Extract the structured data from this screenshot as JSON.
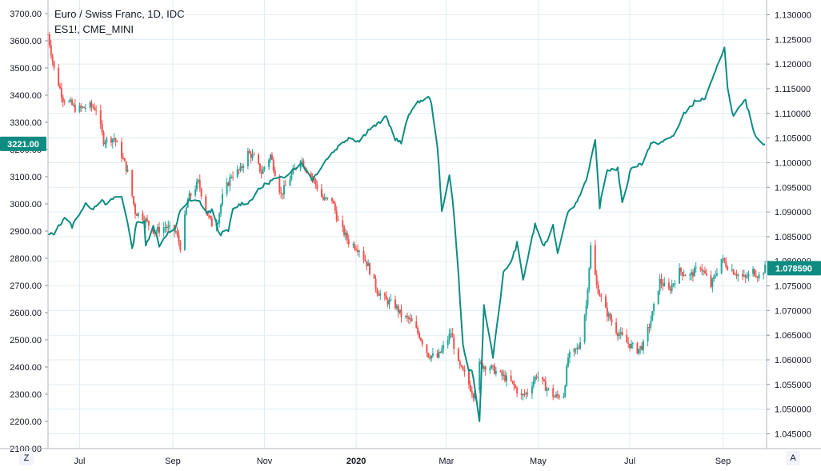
{
  "legend": {
    "main_title": "Euro / Swiss Franc, 1D, IDC",
    "overlay_title": "ES1!, CME_MINI"
  },
  "buttons": {
    "left_axis": "Z",
    "right_axis": "A"
  },
  "colors": {
    "up": "#26a69a",
    "down": "#ef5350",
    "overlay_line": "#0f8c82",
    "badge": "#0f8c82",
    "grid": "#e1ecf2",
    "axis_text": "#131722"
  },
  "chart_data": {
    "type": "candlestick_with_line_overlay",
    "x_axis": {
      "ticks": [
        "Jul",
        "Sep",
        "Nov",
        "2020",
        "Mar",
        "May",
        "Jul",
        "Sep"
      ],
      "tick_dates": [
        "2019-07-01",
        "2019-09-01",
        "2019-11-01",
        "2020-01-01",
        "2020-03-01",
        "2020-05-01",
        "2020-07-01",
        "2020-09-01"
      ],
      "range": [
        "2019-06-10",
        "2020-09-30"
      ]
    },
    "left_axis": {
      "series": "ES1!, CME_MINI",
      "ylim": [
        2100,
        3750
      ],
      "ticks": [
        "3700.00",
        "3600.00",
        "3500.00",
        "3400.00",
        "3300.00",
        "3200.00",
        "3100.00",
        "3000.00",
        "2900.00",
        "2800.00",
        "2700.00",
        "2600.00",
        "2500.00",
        "2400.00",
        "2300.00",
        "2200.00",
        "2100.00"
      ],
      "last_value": "3221.00",
      "last_numeric": 3221
    },
    "right_axis": {
      "series": "Euro / Swiss Franc, 1D, IDC",
      "ylim": [
        1.042,
        1.133
      ],
      "ticks": [
        "1.130000",
        "1.125000",
        "1.120000",
        "1.115000",
        "1.110000",
        "1.105000",
        "1.100000",
        "1.095000",
        "1.090000",
        "1.085000",
        "1.080000",
        "1.075000",
        "1.070000",
        "1.065000",
        "1.060000",
        "1.055000",
        "1.050000",
        "1.045000"
      ],
      "last_value": "1.078590",
      "last_numeric": 1.07859
    },
    "grid": true,
    "series": [
      {
        "name": "Euro / Swiss Franc, 1D, IDC",
        "kind": "candlestick",
        "axis": "right",
        "anchors": [
          [
            "2019-06-10",
            1.126
          ],
          [
            "2019-06-14",
            1.119
          ],
          [
            "2019-06-20",
            1.113
          ],
          [
            "2019-06-25",
            1.112
          ],
          [
            "2019-06-28",
            1.111
          ],
          [
            "2019-07-02",
            1.111
          ],
          [
            "2019-07-08",
            1.1115
          ],
          [
            "2019-07-12",
            1.111
          ],
          [
            "2019-07-17",
            1.1045
          ],
          [
            "2019-07-24",
            1.105
          ],
          [
            "2019-07-29",
            1.1015
          ],
          [
            "2019-08-02",
            1.098
          ],
          [
            "2019-08-07",
            1.09
          ],
          [
            "2019-08-12",
            1.089
          ],
          [
            "2019-08-20",
            1.086
          ],
          [
            "2019-08-27",
            1.087
          ],
          [
            "2019-09-03",
            1.086
          ],
          [
            "2019-09-06",
            1.083
          ],
          [
            "2019-09-11",
            1.0925
          ],
          [
            "2019-09-18",
            1.096
          ],
          [
            "2019-09-24",
            1.0895
          ],
          [
            "2019-09-27",
            1.0875
          ],
          [
            "2019-10-01",
            1.0885
          ],
          [
            "2019-10-04",
            1.093
          ],
          [
            "2019-10-10",
            1.0975
          ],
          [
            "2019-10-16",
            1.0985
          ],
          [
            "2019-10-21",
            1.102
          ],
          [
            "2019-10-25",
            1.101
          ],
          [
            "2019-10-30",
            1.098
          ],
          [
            "2019-11-05",
            1.1015
          ],
          [
            "2019-11-12",
            1.0935
          ],
          [
            "2019-11-19",
            1.0975
          ],
          [
            "2019-11-25",
            1.101
          ],
          [
            "2019-11-29",
            1.0985
          ],
          [
            "2019-12-03",
            1.097
          ],
          [
            "2019-12-10",
            1.0925
          ],
          [
            "2019-12-16",
            1.0925
          ],
          [
            "2019-12-20",
            1.088
          ],
          [
            "2019-12-27",
            1.084
          ],
          [
            "2020-01-03",
            1.0825
          ],
          [
            "2020-01-09",
            1.079
          ],
          [
            "2020-01-15",
            1.074
          ],
          [
            "2020-01-21",
            1.072
          ],
          [
            "2020-01-27",
            1.071
          ],
          [
            "2020-01-31",
            1.069
          ],
          [
            "2020-02-06",
            1.068
          ],
          [
            "2020-02-12",
            1.065
          ],
          [
            "2020-02-18",
            1.061
          ],
          [
            "2020-02-24",
            1.0605
          ],
          [
            "2020-02-28",
            1.0625
          ],
          [
            "2020-03-04",
            1.0655
          ],
          [
            "2020-03-09",
            1.059
          ],
          [
            "2020-03-13",
            1.057
          ],
          [
            "2020-03-19",
            1.053
          ],
          [
            "2020-03-23",
            1.059
          ],
          [
            "2020-03-30",
            1.0585
          ],
          [
            "2020-04-06",
            1.057
          ],
          [
            "2020-04-13",
            1.0555
          ],
          [
            "2020-04-20",
            1.0525
          ],
          [
            "2020-04-24",
            1.0535
          ],
          [
            "2020-04-30",
            1.057
          ],
          [
            "2020-05-06",
            1.0545
          ],
          [
            "2020-05-12",
            1.0525
          ],
          [
            "2020-05-18",
            1.053
          ],
          [
            "2020-05-21",
            1.0605
          ],
          [
            "2020-05-28",
            1.0625
          ],
          [
            "2020-06-02",
            1.071
          ],
          [
            "2020-06-05",
            1.083
          ],
          [
            "2020-06-09",
            1.075
          ],
          [
            "2020-06-15",
            1.07
          ],
          [
            "2020-06-22",
            1.066
          ],
          [
            "2020-06-29",
            1.0635
          ],
          [
            "2020-07-06",
            1.062
          ],
          [
            "2020-07-10",
            1.063
          ],
          [
            "2020-07-15",
            1.068
          ],
          [
            "2020-07-21",
            1.076
          ],
          [
            "2020-07-27",
            1.074
          ],
          [
            "2020-08-03",
            1.078
          ],
          [
            "2020-08-10",
            1.077
          ],
          [
            "2020-08-17",
            1.079
          ],
          [
            "2020-08-24",
            1.075
          ],
          [
            "2020-08-31",
            1.0805
          ],
          [
            "2020-09-04",
            1.079
          ],
          [
            "2020-09-10",
            1.0775
          ],
          [
            "2020-09-16",
            1.0765
          ],
          [
            "2020-09-21",
            1.078
          ],
          [
            "2020-09-25",
            1.077
          ],
          [
            "2020-09-29",
            1.0786
          ]
        ]
      },
      {
        "name": "ES1!, CME_MINI",
        "kind": "line",
        "axis": "left",
        "anchors": [
          [
            "2019-06-10",
            2885
          ],
          [
            "2019-06-14",
            2892
          ],
          [
            "2019-06-18",
            2925
          ],
          [
            "2019-06-21",
            2952
          ],
          [
            "2019-06-26",
            2917
          ],
          [
            "2019-07-01",
            2968
          ],
          [
            "2019-07-05",
            2997
          ],
          [
            "2019-07-10",
            2985
          ],
          [
            "2019-07-15",
            3014
          ],
          [
            "2019-07-19",
            2995
          ],
          [
            "2019-07-24",
            3024
          ],
          [
            "2019-07-29",
            3026
          ],
          [
            "2019-08-01",
            2958
          ],
          [
            "2019-08-05",
            2830
          ],
          [
            "2019-08-08",
            2938
          ],
          [
            "2019-08-13",
            2930
          ],
          [
            "2019-08-14",
            2845
          ],
          [
            "2019-08-19",
            2923
          ],
          [
            "2019-08-23",
            2848
          ],
          [
            "2019-08-28",
            2890
          ],
          [
            "2019-09-03",
            2910
          ],
          [
            "2019-09-06",
            2978
          ],
          [
            "2019-09-12",
            3012
          ],
          [
            "2019-09-19",
            3008
          ],
          [
            "2019-09-24",
            2965
          ],
          [
            "2019-09-27",
            2978
          ],
          [
            "2019-10-02",
            2889
          ],
          [
            "2019-10-08",
            2900
          ],
          [
            "2019-10-11",
            2980
          ],
          [
            "2019-10-16",
            3000
          ],
          [
            "2019-10-22",
            3008
          ],
          [
            "2019-10-28",
            3050
          ],
          [
            "2019-11-01",
            3070
          ],
          [
            "2019-11-07",
            3090
          ],
          [
            "2019-11-13",
            3095
          ],
          [
            "2019-11-19",
            3125
          ],
          [
            "2019-11-26",
            3148
          ],
          [
            "2019-12-03",
            3090
          ],
          [
            "2019-12-09",
            3140
          ],
          [
            "2019-12-13",
            3170
          ],
          [
            "2019-12-19",
            3205
          ],
          [
            "2019-12-27",
            3245
          ],
          [
            "2020-01-03",
            3230
          ],
          [
            "2020-01-09",
            3272
          ],
          [
            "2020-01-15",
            3292
          ],
          [
            "2020-01-21",
            3320
          ],
          [
            "2020-01-27",
            3240
          ],
          [
            "2020-01-31",
            3223
          ],
          [
            "2020-02-05",
            3332
          ],
          [
            "2020-02-12",
            3378
          ],
          [
            "2020-02-19",
            3392
          ],
          [
            "2020-02-21",
            3335
          ],
          [
            "2020-02-24",
            3215
          ],
          [
            "2020-02-27",
            2970
          ],
          [
            "2020-03-03",
            3110
          ],
          [
            "2020-03-06",
            2970
          ],
          [
            "2020-03-09",
            2740
          ],
          [
            "2020-03-12",
            2480
          ],
          [
            "2020-03-16",
            2385
          ],
          [
            "2020-03-18",
            2390
          ],
          [
            "2020-03-23",
            2195
          ],
          [
            "2020-03-26",
            2623
          ],
          [
            "2020-04-01",
            2440
          ],
          [
            "2020-04-08",
            2745
          ],
          [
            "2020-04-14",
            2800
          ],
          [
            "2020-04-17",
            2855
          ],
          [
            "2020-04-21",
            2720
          ],
          [
            "2020-04-29",
            2925
          ],
          [
            "2020-05-05",
            2840
          ],
          [
            "2020-05-11",
            2920
          ],
          [
            "2020-05-14",
            2820
          ],
          [
            "2020-05-20",
            2960
          ],
          [
            "2020-05-27",
            3010
          ],
          [
            "2020-06-03",
            3105
          ],
          [
            "2020-06-08",
            3230
          ],
          [
            "2020-06-11",
            2990
          ],
          [
            "2020-06-16",
            3125
          ],
          [
            "2020-06-23",
            3130
          ],
          [
            "2020-06-26",
            3000
          ],
          [
            "2020-07-02",
            3135
          ],
          [
            "2020-07-09",
            3148
          ],
          [
            "2020-07-15",
            3220
          ],
          [
            "2020-07-23",
            3228
          ],
          [
            "2020-07-30",
            3250
          ],
          [
            "2020-08-06",
            3330
          ],
          [
            "2020-08-13",
            3375
          ],
          [
            "2020-08-20",
            3388
          ],
          [
            "2020-08-26",
            3470
          ],
          [
            "2020-09-02",
            3580
          ],
          [
            "2020-09-04",
            3425
          ],
          [
            "2020-09-08",
            3320
          ],
          [
            "2020-09-11",
            3345
          ],
          [
            "2020-09-16",
            3380
          ],
          [
            "2020-09-21",
            3275
          ],
          [
            "2020-09-24",
            3240
          ],
          [
            "2020-09-29",
            3221
          ]
        ]
      }
    ]
  }
}
